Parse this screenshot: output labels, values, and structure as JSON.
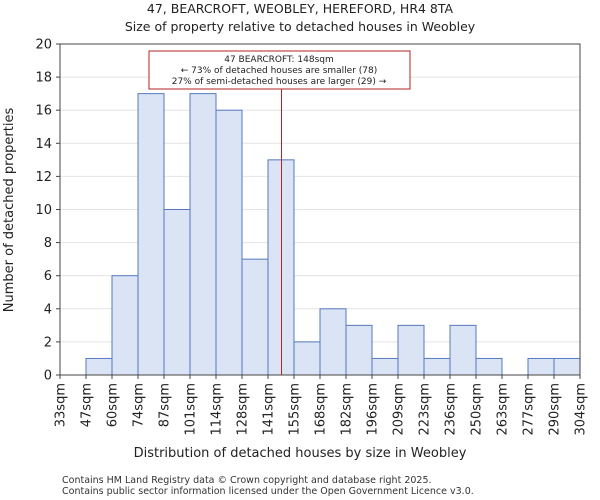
{
  "chart_data": {
    "type": "bar",
    "title_line1": "47, BEARCROFT, WEOBLEY, HEREFORD, HR4 8TA",
    "title_line2": "Size of property relative to detached houses in Weobley",
    "xlabel": "Distribution of detached houses by size in Weobley",
    "ylabel": "Number of detached properties",
    "ylim": [
      0,
      20
    ],
    "yticks": [
      0,
      2,
      4,
      6,
      8,
      10,
      12,
      14,
      16,
      18,
      20
    ],
    "bin_edges": [
      "33sqm",
      "47sqm",
      "60sqm",
      "74sqm",
      "87sqm",
      "101sqm",
      "114sqm",
      "128sqm",
      "141sqm",
      "155sqm",
      "168sqm",
      "182sqm",
      "196sqm",
      "209sqm",
      "223sqm",
      "236sqm",
      "250sqm",
      "263sqm",
      "277sqm",
      "290sqm",
      "304sqm"
    ],
    "values": [
      0,
      1,
      6,
      17,
      10,
      17,
      16,
      7,
      13,
      2,
      4,
      3,
      1,
      3,
      1,
      3,
      1,
      0,
      1,
      1
    ],
    "marker_value": 148,
    "marker_bin_position": 8.52,
    "annotation": {
      "line1": "47 BEARCROFT: 148sqm",
      "line2": "← 73% of detached houses are smaller (78)",
      "line3": "27% of semi-detached houses are larger (29) →"
    },
    "colors": {
      "bar_fill": "#dbe4f4",
      "bar_edge": "#5578c0",
      "marker": "#b22222"
    }
  },
  "footer": {
    "line1": "Contains HM Land Registry data © Crown copyright and database right 2025.",
    "line2": "Contains public sector information licensed under the Open Government Licence v3.0."
  }
}
